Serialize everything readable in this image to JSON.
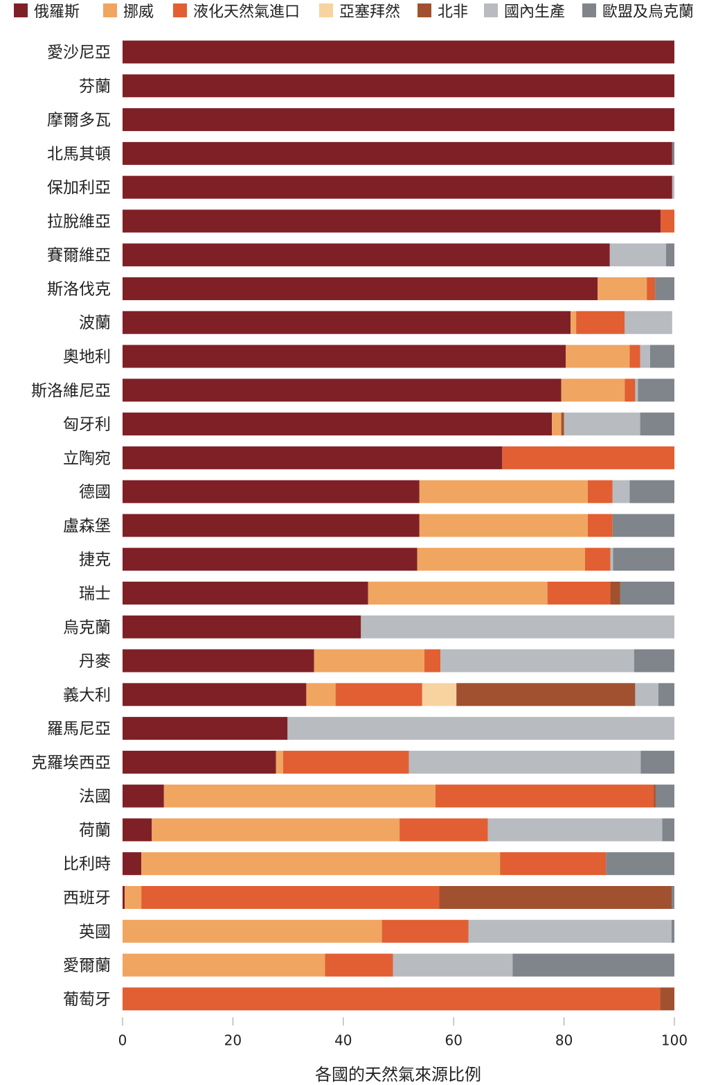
{
  "chart_data": {
    "type": "bar",
    "orientation": "horizontal",
    "stacked": true,
    "xlabel": "各國的天然氣來源比例",
    "xlim": [
      0,
      100
    ],
    "xticks": [
      0,
      20,
      40,
      60,
      80,
      100
    ],
    "legend_position": "top",
    "categories": [
      "愛沙尼亞",
      "芬蘭",
      "摩爾多瓦",
      "北馬其頓",
      "保加利亞",
      "拉脫維亞",
      "賽爾維亞",
      "斯洛伐克",
      "波蘭",
      "奧地利",
      "斯洛維尼亞",
      "匈牙利",
      "立陶宛",
      "德國",
      "盧森堡",
      "捷克",
      "瑞士",
      "烏克蘭",
      "丹麥",
      "義大利",
      "羅馬尼亞",
      "克羅埃西亞",
      "法國",
      "荷蘭",
      "比利時",
      "西班牙",
      "英國",
      "愛爾蘭",
      "葡萄牙"
    ],
    "series": [
      {
        "name": "俄羅斯",
        "color": "#7f2027",
        "values": [
          100,
          100,
          100,
          99.6,
          99.6,
          97.5,
          88.3,
          86.1,
          81.2,
          80.3,
          79.5,
          77.8,
          68.8,
          53.8,
          53.8,
          53.4,
          44.5,
          43.2,
          34.7,
          33.3,
          29.9,
          27.8,
          7.5,
          5.3,
          3.4,
          0.4,
          0,
          0,
          0
        ]
      },
      {
        "name": "挪威",
        "color": "#f0a561",
        "values": [
          0,
          0,
          0,
          0,
          0,
          0,
          0,
          8.9,
          1.0,
          11.6,
          11.5,
          1.7,
          0,
          30.5,
          30.5,
          30.4,
          32.5,
          0,
          20.0,
          5.3,
          0,
          1.3,
          49.2,
          44.9,
          65.0,
          3.0,
          47.0,
          36.7,
          0
        ]
      },
      {
        "name": "液化天然氣進口",
        "color": "#e15f33",
        "values": [
          0,
          0,
          0,
          0,
          0,
          2.5,
          0,
          1.5,
          8.8,
          1.9,
          1.9,
          0,
          31.2,
          4.5,
          4.5,
          4.6,
          11.4,
          0,
          2.9,
          15.7,
          0,
          22.8,
          39.6,
          16.0,
          19.2,
          54.0,
          15.7,
          12.3,
          97.4
        ]
      },
      {
        "name": "亞塞拜然",
        "color": "#f8d3a0",
        "values": [
          0,
          0,
          0,
          0,
          0,
          0,
          0,
          0,
          0,
          0,
          0,
          0,
          0,
          0,
          0,
          0,
          0,
          0,
          0,
          6.2,
          0,
          0,
          0,
          0,
          0,
          0,
          0,
          0,
          0
        ]
      },
      {
        "name": "北非",
        "color": "#a1512f",
        "values": [
          0,
          0,
          0,
          0,
          0,
          0,
          0,
          0,
          0,
          0,
          0,
          0.5,
          0,
          0,
          0,
          0,
          1.8,
          0,
          0,
          32.4,
          0,
          0,
          0.3,
          0,
          0,
          42.1,
          0,
          0,
          2.6
        ]
      },
      {
        "name": "國內生產",
        "color": "#b8bbc0",
        "values": [
          0,
          0,
          0,
          0,
          0.4,
          0,
          10.2,
          0,
          8.6,
          1.8,
          0.5,
          13.8,
          0,
          3.1,
          0,
          0.5,
          0,
          56.8,
          35.1,
          4.2,
          70.1,
          42.0,
          0,
          31.6,
          0,
          0,
          36.8,
          21.7,
          0
        ]
      },
      {
        "name": "歐盟及烏克蘭",
        "color": "#7f858a",
        "values": [
          0,
          0,
          0,
          0.4,
          0,
          0,
          1.5,
          3.5,
          0,
          4.4,
          6.6,
          6.2,
          0,
          8.1,
          11.2,
          11.1,
          9.8,
          0,
          7.3,
          2.9,
          0,
          6.1,
          3.4,
          2.2,
          12.4,
          0.5,
          0.5,
          29.3,
          0
        ]
      }
    ]
  }
}
